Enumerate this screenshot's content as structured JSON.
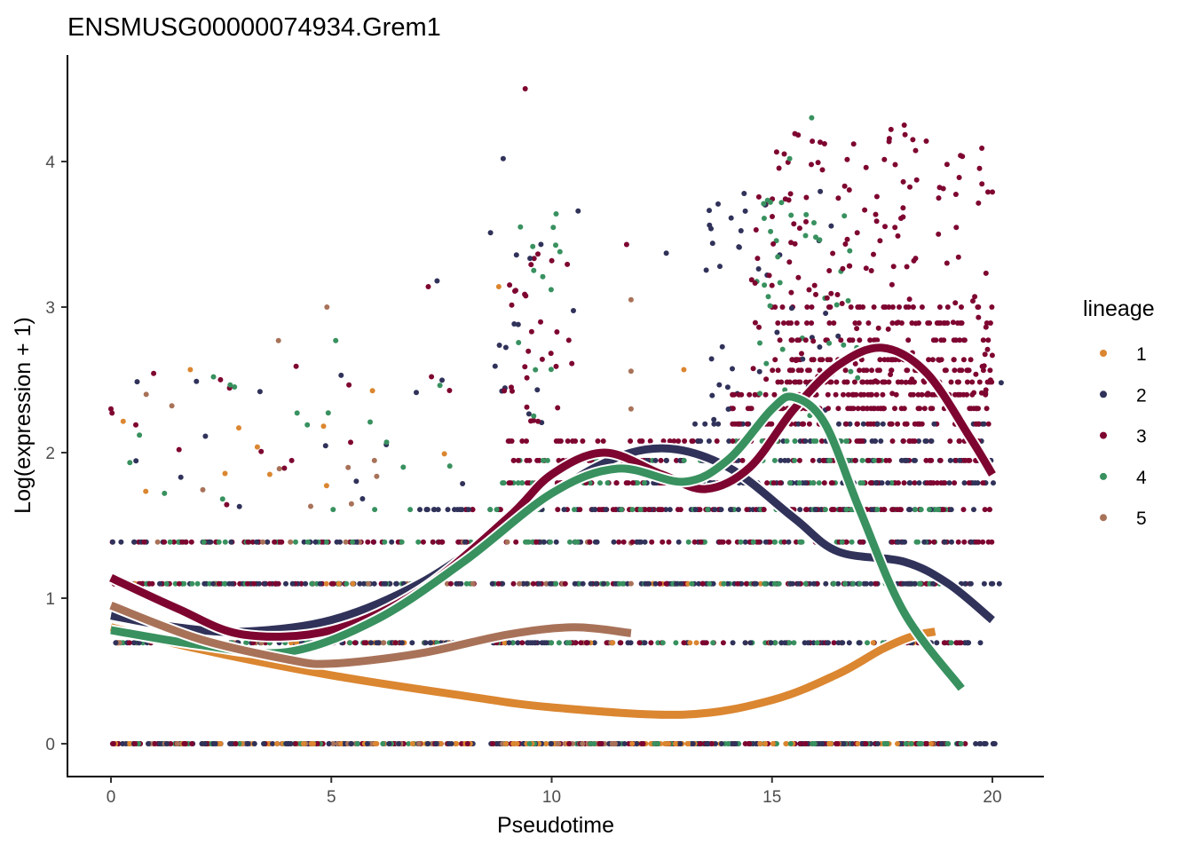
{
  "chart_data": {
    "type": "scatter",
    "title": "ENSMUSG00000074934.Grem1",
    "xlabel": "Pseudotime",
    "ylabel": "Log(expression + 1)",
    "xlim": [
      -1,
      21
    ],
    "ylim": [
      -0.22,
      4.7
    ],
    "xticks": [
      0,
      5,
      10,
      15,
      20
    ],
    "yticks": [
      0,
      1,
      2,
      3,
      4
    ],
    "grid": false,
    "legend": {
      "title": "lineage",
      "position": "right",
      "entries": [
        "1",
        "2",
        "3",
        "4",
        "5"
      ]
    },
    "colors": {
      "1": "#DB8630",
      "2": "#30325A",
      "3": "#7E0530",
      "4": "#38915F",
      "5": "#A87259"
    },
    "bands": [
      {
        "lineage": "1",
        "y": 0,
        "x": [
          0,
          18.7
        ],
        "n": 150
      },
      {
        "lineage": "1",
        "y": 0.693,
        "x": [
          0,
          18.7
        ],
        "n": 30
      },
      {
        "lineage": "1",
        "y": 1.099,
        "x": [
          0,
          18
        ],
        "n": 15
      },
      {
        "lineage": "2",
        "y": 0,
        "x": [
          0,
          20.2
        ],
        "n": 200
      },
      {
        "lineage": "2",
        "y": 0.693,
        "x": [
          0,
          20.2
        ],
        "n": 120
      },
      {
        "lineage": "2",
        "y": 1.099,
        "x": [
          0,
          20.2
        ],
        "n": 150
      },
      {
        "lineage": "2",
        "y": 1.386,
        "x": [
          0,
          20.2
        ],
        "n": 80
      },
      {
        "lineage": "2",
        "y": 1.609,
        "x": [
          7,
          20.2
        ],
        "n": 70
      },
      {
        "lineage": "2",
        "y": 1.792,
        "x": [
          12,
          20.2
        ],
        "n": 50
      },
      {
        "lineage": "2",
        "y": 1.946,
        "x": [
          12,
          20
        ],
        "n": 40
      },
      {
        "lineage": "2",
        "y": 2.079,
        "x": [
          13,
          20
        ],
        "n": 30
      },
      {
        "lineage": "2",
        "y": 2.197,
        "x": [
          13,
          20
        ],
        "n": 20
      },
      {
        "lineage": "3",
        "y": 0,
        "x": [
          0,
          20
        ],
        "n": 150
      },
      {
        "lineage": "3",
        "y": 0.693,
        "x": [
          0,
          20
        ],
        "n": 80
      },
      {
        "lineage": "3",
        "y": 1.099,
        "x": [
          0,
          20
        ],
        "n": 100
      },
      {
        "lineage": "3",
        "y": 1.386,
        "x": [
          0,
          20
        ],
        "n": 100
      },
      {
        "lineage": "3",
        "y": 1.609,
        "x": [
          8,
          20
        ],
        "n": 100
      },
      {
        "lineage": "3",
        "y": 1.792,
        "x": [
          9,
          20
        ],
        "n": 80
      },
      {
        "lineage": "3",
        "y": 1.946,
        "x": [
          9,
          20
        ],
        "n": 80
      },
      {
        "lineage": "3",
        "y": 2.079,
        "x": [
          9,
          20
        ],
        "n": 60
      },
      {
        "lineage": "3",
        "y": 2.197,
        "x": [
          14,
          20
        ],
        "n": 60
      },
      {
        "lineage": "3",
        "y": 2.303,
        "x": [
          14,
          20
        ],
        "n": 60
      },
      {
        "lineage": "3",
        "y": 2.398,
        "x": [
          14,
          20
        ],
        "n": 60
      },
      {
        "lineage": "3",
        "y": 2.485,
        "x": [
          15,
          20
        ],
        "n": 50
      },
      {
        "lineage": "3",
        "y": 2.565,
        "x": [
          15,
          20
        ],
        "n": 40
      },
      {
        "lineage": "3",
        "y": 2.639,
        "x": [
          15,
          20
        ],
        "n": 40
      },
      {
        "lineage": "3",
        "y": 2.773,
        "x": [
          15,
          20
        ],
        "n": 30
      },
      {
        "lineage": "3",
        "y": 2.89,
        "x": [
          15,
          20
        ],
        "n": 30
      },
      {
        "lineage": "3",
        "y": 3.0,
        "x": [
          15,
          20
        ],
        "n": 30
      },
      {
        "lineage": "4",
        "y": 0,
        "x": [
          0,
          19.3
        ],
        "n": 100
      },
      {
        "lineage": "4",
        "y": 0.693,
        "x": [
          0,
          19.3
        ],
        "n": 60
      },
      {
        "lineage": "4",
        "y": 1.099,
        "x": [
          0,
          19
        ],
        "n": 80
      },
      {
        "lineage": "4",
        "y": 1.386,
        "x": [
          0,
          19
        ],
        "n": 60
      },
      {
        "lineage": "4",
        "y": 1.609,
        "x": [
          5,
          19
        ],
        "n": 50
      },
      {
        "lineage": "4",
        "y": 1.792,
        "x": [
          8,
          18
        ],
        "n": 40
      },
      {
        "lineage": "4",
        "y": 1.946,
        "x": [
          9,
          18
        ],
        "n": 30
      },
      {
        "lineage": "4",
        "y": 2.079,
        "x": [
          14,
          17
        ],
        "n": 20
      },
      {
        "lineage": "5",
        "y": 0,
        "x": [
          0,
          11.8
        ],
        "n": 60
      },
      {
        "lineage": "5",
        "y": 0.693,
        "x": [
          0,
          11.8
        ],
        "n": 20
      },
      {
        "lineage": "5",
        "y": 1.099,
        "x": [
          0,
          11.8
        ],
        "n": 15
      },
      {
        "lineage": "5",
        "y": 1.386,
        "x": [
          0,
          11.8
        ],
        "n": 10
      }
    ],
    "clouds": [
      {
        "lineage": "3",
        "x": [
          14.5,
          20
        ],
        "y": [
          2.4,
          4.2
        ],
        "n": 150
      },
      {
        "lineage": "3",
        "x": [
          8.5,
          10.5
        ],
        "y": [
          2.2,
          3.4
        ],
        "n": 30
      },
      {
        "lineage": "2",
        "x": [
          13.5,
          16.5
        ],
        "y": [
          2.2,
          3.8
        ],
        "n": 40
      },
      {
        "lineage": "4",
        "x": [
          14.5,
          17
        ],
        "y": [
          2.2,
          3.8
        ],
        "n": 40
      },
      {
        "lineage": "2",
        "x": [
          8.5,
          10.6
        ],
        "y": [
          2.2,
          3.6
        ],
        "n": 15
      },
      {
        "lineage": "4",
        "x": [
          9,
          10.5
        ],
        "y": [
          2.2,
          3.6
        ],
        "n": 12
      },
      {
        "lineage": "1",
        "x": [
          0,
          8
        ],
        "y": [
          1.6,
          2.6
        ],
        "n": 10
      },
      {
        "lineage": "2",
        "x": [
          0,
          8
        ],
        "y": [
          1.6,
          2.6
        ],
        "n": 15
      },
      {
        "lineage": "3",
        "x": [
          0,
          8
        ],
        "y": [
          1.6,
          2.6
        ],
        "n": 15
      },
      {
        "lineage": "4",
        "x": [
          0,
          8
        ],
        "y": [
          1.6,
          2.6
        ],
        "n": 15
      },
      {
        "lineage": "5",
        "x": [
          0,
          8
        ],
        "y": [
          1.6,
          2.6
        ],
        "n": 8
      }
    ],
    "points": [
      {
        "lineage": "3",
        "x": 9.4,
        "y": 4.5
      },
      {
        "lineage": "2",
        "x": 8.9,
        "y": 4.02
      },
      {
        "lineage": "4",
        "x": 15.9,
        "y": 4.3
      },
      {
        "lineage": "4",
        "x": 15.4,
        "y": 4.02
      },
      {
        "lineage": "3",
        "x": 18.0,
        "y": 4.25
      },
      {
        "lineage": "3",
        "x": 17.7,
        "y": 4.22
      },
      {
        "lineage": "3",
        "x": 18.5,
        "y": 4.14
      },
      {
        "lineage": "5",
        "x": 3.8,
        "y": 2.77
      },
      {
        "lineage": "5",
        "x": 4.9,
        "y": 3.0
      },
      {
        "lineage": "1",
        "x": 1.8,
        "y": 2.57
      },
      {
        "lineage": "3",
        "x": 0,
        "y": 2.3
      },
      {
        "lineage": "5",
        "x": 0.8,
        "y": 2.4
      },
      {
        "lineage": "2",
        "x": 10.6,
        "y": 3.66
      },
      {
        "lineage": "4",
        "x": 10.1,
        "y": 3.64
      },
      {
        "lineage": "3",
        "x": 11.7,
        "y": 3.43
      },
      {
        "lineage": "5",
        "x": 11.8,
        "y": 3.05
      },
      {
        "lineage": "1",
        "x": 8.8,
        "y": 3.14
      },
      {
        "lineage": "2",
        "x": 7.4,
        "y": 3.18
      },
      {
        "lineage": "3",
        "x": 7.2,
        "y": 3.14
      },
      {
        "lineage": "4",
        "x": 5.1,
        "y": 2.77
      },
      {
        "lineage": "2",
        "x": 12.6,
        "y": 3.37
      },
      {
        "lineage": "1",
        "x": 13.0,
        "y": 2.57
      },
      {
        "lineage": "5",
        "x": 11.8,
        "y": 2.56
      },
      {
        "lineage": "5",
        "x": 11.8,
        "y": 2.3
      },
      {
        "lineage": "3",
        "x": 19.9,
        "y": 3.79
      },
      {
        "lineage": "3",
        "x": 20.0,
        "y": 3.79
      },
      {
        "lineage": "2",
        "x": 16.5,
        "y": 2.8
      },
      {
        "lineage": "1",
        "x": 17.3,
        "y": 2.7
      },
      {
        "lineage": "2",
        "x": 20.2,
        "y": 2.48
      },
      {
        "lineage": "1",
        "x": 11.8,
        "y": 1.61
      },
      {
        "lineage": "5",
        "x": 11.8,
        "y": 1.38
      },
      {
        "lineage": "5",
        "x": 11.8,
        "y": 1.1
      },
      {
        "lineage": "1",
        "x": 12.3,
        "y": 1.1
      }
    ],
    "curves": [
      {
        "lineage": "1",
        "x": [
          0,
          2,
          5,
          8,
          10,
          13,
          15,
          16.5,
          17.5,
          18.2,
          18.7
        ],
        "y": [
          0.8,
          0.65,
          0.47,
          0.33,
          0.25,
          0.2,
          0.3,
          0.48,
          0.65,
          0.74,
          0.77
        ]
      },
      {
        "lineage": "2",
        "x": [
          0,
          1.5,
          3,
          5,
          7,
          9,
          11,
          12.5,
          14,
          15.5,
          16.5,
          18,
          19,
          20
        ],
        "y": [
          0.88,
          0.8,
          0.77,
          0.85,
          1.1,
          1.5,
          1.9,
          2.03,
          1.9,
          1.55,
          1.32,
          1.25,
          1.1,
          0.85
        ]
      },
      {
        "lineage": "3",
        "x": [
          0,
          1.5,
          3,
          5,
          7,
          9,
          10,
          11.2,
          12.5,
          13.5,
          14.5,
          15.5,
          16.5,
          17.5,
          18.5,
          19.5,
          20
        ],
        "y": [
          1.14,
          0.93,
          0.75,
          0.78,
          1.05,
          1.55,
          1.85,
          2.0,
          1.85,
          1.75,
          1.9,
          2.3,
          2.6,
          2.72,
          2.55,
          2.1,
          1.85
        ]
      },
      {
        "lineage": "4",
        "x": [
          0,
          2,
          4,
          6,
          8,
          10,
          11.5,
          13,
          14,
          15,
          15.5,
          16.2,
          17,
          18,
          19.3
        ],
        "y": [
          0.78,
          0.68,
          0.63,
          0.85,
          1.25,
          1.72,
          1.89,
          1.8,
          1.95,
          2.3,
          2.38,
          2.2,
          1.6,
          0.9,
          0.38
        ]
      },
      {
        "lineage": "5",
        "x": [
          0,
          2,
          4,
          5,
          7,
          9,
          10.5,
          11.8
        ],
        "y": [
          0.95,
          0.72,
          0.58,
          0.55,
          0.62,
          0.75,
          0.8,
          0.76
        ]
      }
    ]
  }
}
